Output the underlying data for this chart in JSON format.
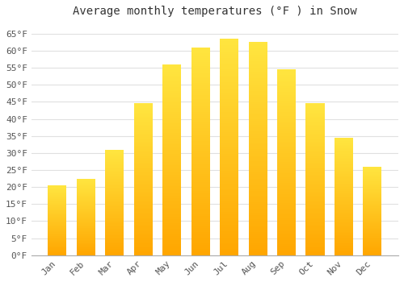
{
  "title": "Average monthly temperatures (°F ) in Snow",
  "months": [
    "Jan",
    "Feb",
    "Mar",
    "Apr",
    "May",
    "Jun",
    "Jul",
    "Aug",
    "Sep",
    "Oct",
    "Nov",
    "Dec"
  ],
  "values": [
    20.5,
    22.5,
    31.0,
    44.5,
    56.0,
    61.0,
    63.5,
    62.5,
    54.5,
    44.5,
    34.5,
    26.0
  ],
  "bar_color_top": "#FFD966",
  "bar_color_bottom": "#FFA500",
  "background_color": "#ffffff",
  "grid_color": "#e0e0e0",
  "ylim": [
    0,
    68
  ],
  "yticks": [
    0,
    5,
    10,
    15,
    20,
    25,
    30,
    35,
    40,
    45,
    50,
    55,
    60,
    65
  ],
  "title_fontsize": 10,
  "tick_fontsize": 8,
  "font_family": "monospace"
}
